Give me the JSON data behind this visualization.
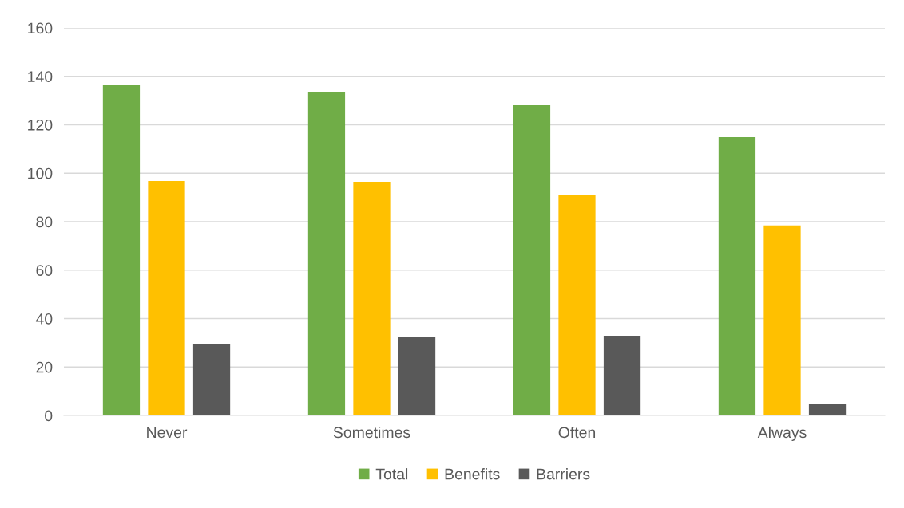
{
  "chart_data": {
    "type": "bar",
    "categories": [
      "Never",
      "Sometimes",
      "Often",
      "Always"
    ],
    "series": [
      {
        "name": "Total",
        "color": "#70ad47",
        "values": [
          136.3,
          133.7,
          128.1,
          114.9
        ]
      },
      {
        "name": "Benefits",
        "color": "#ffc000",
        "values": [
          96.8,
          96.5,
          91.2,
          78.4
        ]
      },
      {
        "name": "Barriers",
        "color": "#595959",
        "values": [
          29.6,
          32.6,
          32.9,
          4.9
        ]
      }
    ],
    "ylim": [
      0,
      160
    ],
    "yticks": [
      0,
      20,
      40,
      60,
      80,
      100,
      120,
      140,
      160
    ],
    "grid": "y",
    "legend": "bottom"
  }
}
